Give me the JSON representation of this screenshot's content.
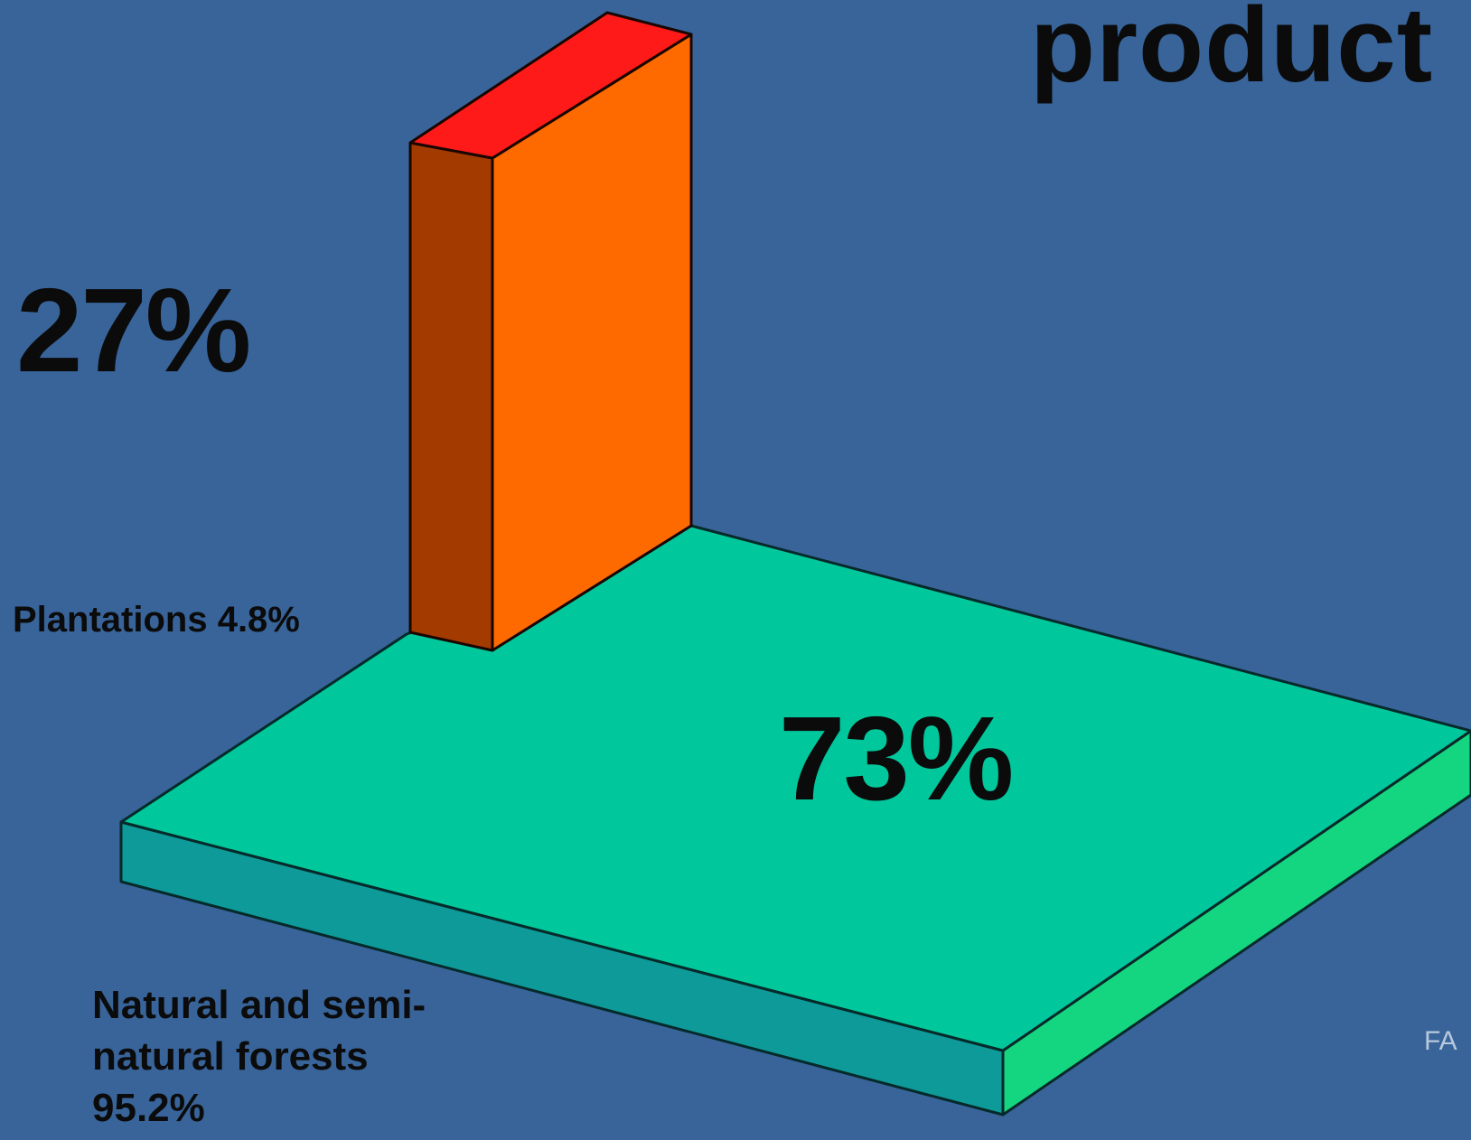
{
  "title": "product",
  "colors": {
    "background": "#38649a",
    "plantations_front": "#ff6a00",
    "plantations_side": "#a33a00",
    "plantations_top": "#ff1a1a",
    "natural_top": "#00c89c",
    "natural_front": "#0f9a9a",
    "natural_side": "#15d680"
  },
  "chart_data": {
    "type": "bar",
    "style": "3d",
    "categories": [
      "Plantations",
      "Natural and semi-natural forests"
    ],
    "area_share_labels": [
      "Plantations 4.8%",
      "Natural and semi-natural forests 95.2%"
    ],
    "area_share": [
      4.8,
      95.2
    ],
    "production_share": [
      27,
      73
    ],
    "production_labels": [
      "27%",
      "73%"
    ]
  },
  "source_fragment": "FA"
}
